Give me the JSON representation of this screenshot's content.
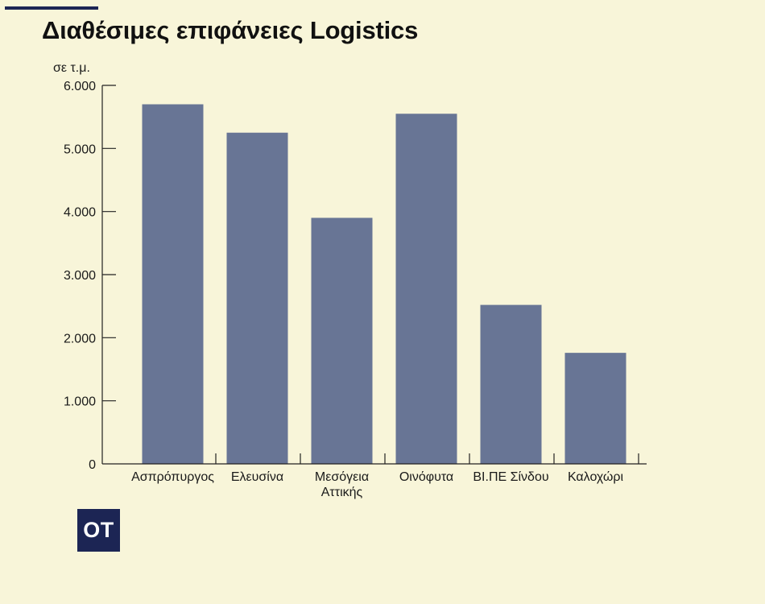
{
  "title": "Διαθέσιμες επιφάνειες Logistics",
  "logo_text": "OT",
  "colors": {
    "background": "#f8f5d9",
    "bar": "#687595",
    "accent": "#1c2554"
  },
  "chart_data": {
    "type": "bar",
    "title": "Διαθέσιμες επιφάνειες Logistics",
    "ylabel": "σε τ.μ.",
    "xlabel": "",
    "ylim": [
      0,
      6000
    ],
    "yticks": [
      0,
      1000,
      2000,
      3000,
      4000,
      5000,
      6000
    ],
    "ytick_labels": [
      "0",
      "1.000",
      "2.000",
      "3.000",
      "4.000",
      "5.000",
      "6.000"
    ],
    "categories": [
      [
        "Ασπρόπυργος"
      ],
      [
        "Ελευσίνα"
      ],
      [
        "Μεσόγεια",
        "Αττικής"
      ],
      [
        "Οινόφυτα"
      ],
      [
        "ΒΙ.ΠΕ Σίνδου"
      ],
      [
        "Καλοχώρι"
      ]
    ],
    "values": [
      5700,
      5250,
      3900,
      5550,
      2520,
      1760
    ],
    "grid": false,
    "legend": "none"
  }
}
